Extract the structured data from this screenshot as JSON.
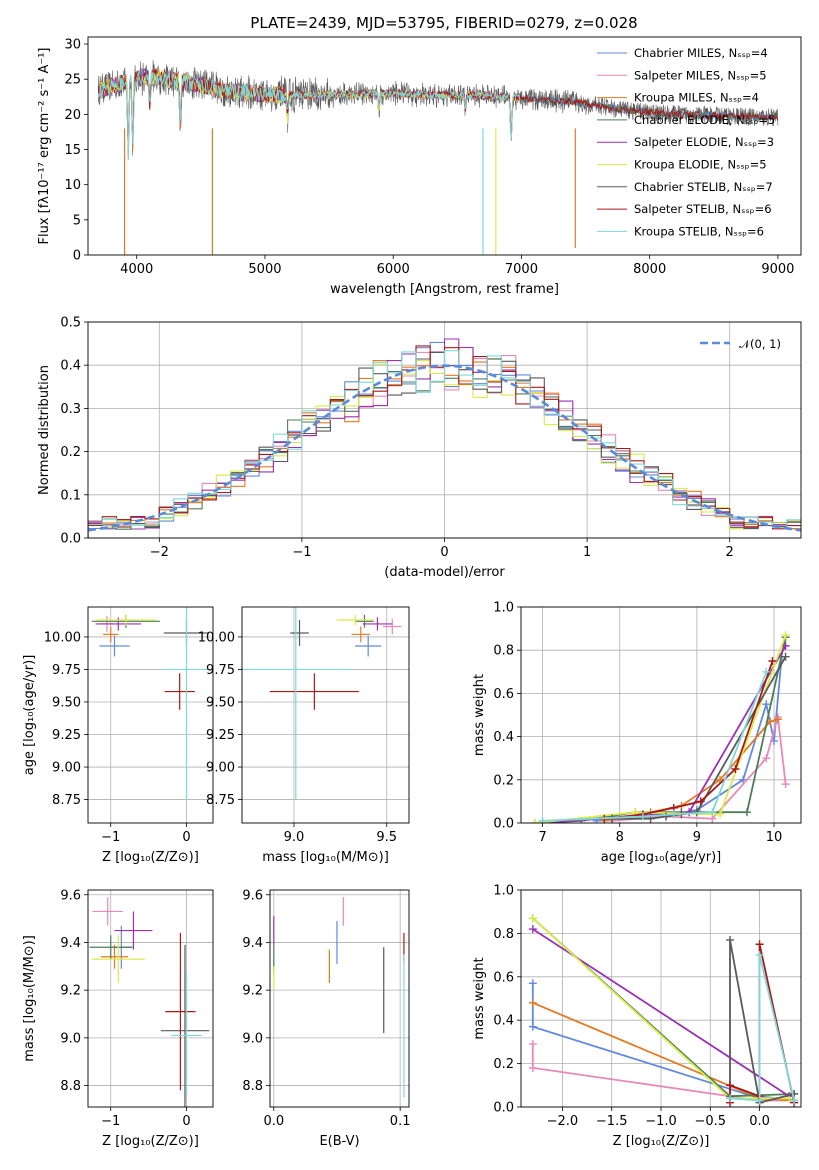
{
  "figure": {
    "title": "PLATE=2439, MJD=53795, FIBERID=0279, z=0.028"
  },
  "colors": {
    "Chabrier MILES": "#6389dd",
    "Salpeter MILES": "#e889b9",
    "Kroupa MILES": "#e57a23",
    "Chabrier ELODIE": "#4e7d5a",
    "Salpeter ELODIE": "#9b30b4",
    "Kroupa ELODIE": "#d9ec48",
    "Chabrier STELIB": "#5a5a5a",
    "Salpeter STELIB": "#a81a1a",
    "Kroupa STELIB": "#80d8d8",
    "normal": "#5b8ad8",
    "grid": "#b0b0b0"
  },
  "chart_data": [
    {
      "id": "spectrum",
      "type": "line",
      "xlabel": "wavelength [Angstrom, rest frame]",
      "ylabel": "Flux [fλ10⁻¹⁷ erg cm⁻² s⁻¹ A⁻¹]",
      "xlim": [
        3620,
        9180
      ],
      "ylim": [
        0,
        31
      ],
      "xticks": [
        4000,
        5000,
        6000,
        7000,
        8000,
        9000
      ],
      "yticks": [
        0,
        5,
        10,
        15,
        20,
        25,
        30
      ],
      "grid": false,
      "legend_position": "top-right",
      "series": [
        {
          "name": "Chabrier MILES, Nₛₛₚ=4"
        },
        {
          "name": "Salpeter MILES, Nₛₛₚ=5"
        },
        {
          "name": "Kroupa MILES, Nₛₛₚ=4"
        },
        {
          "name": "Chabrier ELODIE, Nₛₛₚ=5"
        },
        {
          "name": "Salpeter ELODIE, Nₛₛₚ=3"
        },
        {
          "name": "Kroupa ELODIE, Nₛₛₚ=5"
        },
        {
          "name": "Chabrier STELIB, Nₛₛₚ=7"
        },
        {
          "name": "Salpeter STELIB, Nₛₛₚ=6"
        },
        {
          "name": "Kroupa STELIB, Nₛₛₚ=6"
        }
      ],
      "continuum": {
        "wavelength": [
          3700,
          3900,
          4100,
          4400,
          4700,
          5000,
          5300,
          5600,
          6000,
          6300,
          6600,
          7000,
          7400,
          7800,
          8200,
          8600,
          9000
        ],
        "flux": [
          23.5,
          24.5,
          25.5,
          24.5,
          23.3,
          22.8,
          22.7,
          22.8,
          23.0,
          22.7,
          22.8,
          22.3,
          21.8,
          20.6,
          20.0,
          19.8,
          19.5
        ]
      },
      "absorption_lines": [
        {
          "wavelength": 3934,
          "depth": 10
        },
        {
          "wavelength": 3969,
          "depth": 9
        },
        {
          "wavelength": 4102,
          "depth": 4
        },
        {
          "wavelength": 4340,
          "depth": 6
        },
        {
          "wavelength": 5175,
          "depth": 3
        },
        {
          "wavelength": 5890,
          "depth": 2
        },
        {
          "wavelength": 6563,
          "depth": 2
        },
        {
          "wavelength": 6920,
          "depth": 6
        }
      ],
      "spikes": [
        {
          "wavelength": 3905,
          "flux_low": 0,
          "series_index": 2
        },
        {
          "wavelength": 4590,
          "flux_low": 0,
          "series_index": 2
        },
        {
          "wavelength": 6800,
          "flux_low": 0,
          "series_index": 5
        },
        {
          "wavelength": 7420,
          "flux_low": 1,
          "series_index": 2
        },
        {
          "wavelength": 6700,
          "flux_low": 0,
          "series_index": 8
        }
      ]
    },
    {
      "id": "residual_hist",
      "type": "bar",
      "xlabel": "(data-model)/error",
      "ylabel": "Normed distribution",
      "xlim": [
        -2.5,
        2.5
      ],
      "ylim": [
        0,
        0.5
      ],
      "xticks": [
        -2,
        -1,
        0,
        1,
        2
      ],
      "yticks": [
        0,
        0.1,
        0.2,
        0.3,
        0.4,
        0.5
      ],
      "grid": true,
      "legend_position": "top-right",
      "legend": [
        {
          "name": "𝒩(0, 1)"
        }
      ],
      "bin_width": 0.1,
      "bins_from": -2.5
    },
    {
      "id": "age_vs_Z",
      "type": "scatter",
      "xlabel": "Z [log₁₀(Z/Z⊙)]",
      "ylabel": "age  [log₁₀(age/yr)]",
      "xlim": [
        -1.3,
        0.35
      ],
      "ylim": [
        8.57,
        10.23
      ],
      "xticks": [
        -1,
        0
      ],
      "yticks": [
        8.75,
        9.0,
        9.25,
        9.5,
        9.75,
        10.0
      ],
      "grid": true,
      "points": [
        {
          "x": -0.95,
          "y": 9.93,
          "xerr": 0.2,
          "yerr": 0.08,
          "series": "Chabrier MILES"
        },
        {
          "x": -1.05,
          "y": 10.1,
          "xerr": 0.1,
          "yerr": 0.06,
          "series": "Salpeter MILES"
        },
        {
          "x": -1.0,
          "y": 10.02,
          "xerr": 0.1,
          "yerr": 0.06,
          "series": "Kroupa MILES"
        },
        {
          "x": -0.8,
          "y": 10.12,
          "xerr": 0.45,
          "yerr": 0.05,
          "series": "Chabrier ELODIE"
        },
        {
          "x": -0.9,
          "y": 10.1,
          "xerr": 0.3,
          "yerr": 0.05,
          "series": "Salpeter ELODIE"
        },
        {
          "x": -0.8,
          "y": 10.13,
          "xerr": 0.4,
          "yerr": 0.04,
          "series": "Kroupa ELODIE"
        },
        {
          "x": 0.0,
          "y": 10.03,
          "xerr": 0.3,
          "yerr": 0.1,
          "series": "Chabrier STELIB"
        },
        {
          "x": -0.09,
          "y": 9.58,
          "xerr": 0.2,
          "yerr": 0.14,
          "series": "Salpeter STELIB"
        },
        {
          "x": 0.0,
          "y": 9.75,
          "xerr": 0.3,
          "yerr": 1.0,
          "series": "Kroupa STELIB"
        }
      ]
    },
    {
      "id": "age_vs_mass",
      "type": "scatter",
      "xlabel": "mass [log₁₀(M/M⊙)]",
      "ylabel": "",
      "xlim": [
        8.72,
        9.62
      ],
      "ylim": [
        8.57,
        10.23
      ],
      "xticks": [
        9.0,
        9.5
      ],
      "yticks": [
        8.75,
        9.0,
        9.25,
        9.5,
        9.75,
        10.0
      ],
      "grid": true,
      "points": [
        {
          "x": 9.4,
          "y": 9.93,
          "xerr": 0.07,
          "yerr": 0.08,
          "series": "Chabrier MILES"
        },
        {
          "x": 9.53,
          "y": 10.08,
          "xerr": 0.05,
          "yerr": 0.06,
          "series": "Salpeter MILES"
        },
        {
          "x": 9.36,
          "y": 10.02,
          "xerr": 0.05,
          "yerr": 0.06,
          "series": "Kroupa MILES"
        },
        {
          "x": 9.38,
          "y": 10.12,
          "xerr": 0.05,
          "yerr": 0.05,
          "series": "Chabrier ELODIE"
        },
        {
          "x": 9.45,
          "y": 10.1,
          "xerr": 0.08,
          "yerr": 0.05,
          "series": "Salpeter ELODIE"
        },
        {
          "x": 9.33,
          "y": 10.13,
          "xerr": 0.1,
          "yerr": 0.04,
          "series": "Kroupa ELODIE"
        },
        {
          "x": 9.03,
          "y": 10.03,
          "xerr": 0.05,
          "yerr": 0.1,
          "series": "Chabrier STELIB"
        },
        {
          "x": 9.11,
          "y": 9.58,
          "xerr": 0.24,
          "yerr": 0.14,
          "series": "Salpeter STELIB"
        },
        {
          "x": 9.01,
          "y": 9.75,
          "xerr": 0.3,
          "yerr": 1.0,
          "series": "Kroupa STELIB"
        }
      ]
    },
    {
      "id": "massweight_vs_age",
      "type": "line",
      "xlabel": "age  [log₁₀(age/yr)]",
      "ylabel": "mass weight",
      "xlim": [
        6.72,
        10.35
      ],
      "ylim": [
        0,
        1
      ],
      "xticks": [
        7,
        8,
        9,
        10
      ],
      "yticks": [
        0,
        0.2,
        0.4,
        0.6,
        0.8,
        1.0
      ],
      "grid": true,
      "series": [
        {
          "series": "Chabrier MILES",
          "x": [
            7.7,
            8.3,
            8.7,
            9.0,
            9.6,
            9.9,
            10.0,
            10.1
          ],
          "y": [
            0.01,
            0.03,
            0.04,
            0.06,
            0.2,
            0.55,
            0.38,
            0.77
          ]
        },
        {
          "series": "Salpeter MILES",
          "x": [
            7.9,
            8.6,
            9.2,
            9.9,
            10.05,
            10.15
          ],
          "y": [
            0.01,
            0.03,
            0.02,
            0.3,
            0.49,
            0.18
          ]
        },
        {
          "series": "Kroupa MILES",
          "x": [
            7.8,
            8.4,
            8.8,
            9.3,
            9.95,
            10.05
          ],
          "y": [
            0.01,
            0.05,
            0.08,
            0.2,
            0.47,
            0.48
          ]
        },
        {
          "series": "Chabrier ELODIE",
          "x": [
            6.9,
            7.5,
            8.2,
            8.8,
            9.65,
            10.15
          ],
          "y": [
            0.0,
            0.01,
            0.05,
            0.05,
            0.05,
            0.86
          ]
        },
        {
          "series": "Salpeter ELODIE",
          "x": [
            7.0,
            8.9,
            10.15
          ],
          "y": [
            0.0,
            0.05,
            0.82
          ]
        },
        {
          "series": "Kroupa ELODIE",
          "x": [
            6.9,
            8.2,
            9.3,
            10.15
          ],
          "y": [
            0.0,
            0.05,
            0.04,
            0.87
          ]
        },
        {
          "series": "Chabrier STELIB",
          "x": [
            7.9,
            8.4,
            8.6,
            8.8,
            9.0,
            10.15
          ],
          "y": [
            0.02,
            0.02,
            0.03,
            0.04,
            0.05,
            0.77
          ]
        },
        {
          "series": "Salpeter STELIB",
          "x": [
            7.8,
            8.3,
            8.7,
            9.05,
            9.5,
            9.98
          ],
          "y": [
            0.02,
            0.04,
            0.07,
            0.1,
            0.25,
            0.75
          ]
        },
        {
          "series": "Kroupa STELIB",
          "x": [
            7.0,
            8.3,
            8.7,
            9.2,
            9.9
          ],
          "y": [
            0.01,
            0.03,
            0.04,
            0.05,
            0.7
          ]
        }
      ]
    },
    {
      "id": "mass_vs_Z",
      "type": "scatter",
      "xlabel": "Z [log₁₀(Z/Z⊙)]",
      "ylabel": "mass [log₁₀(M/M⊙)]",
      "xlim": [
        -1.3,
        0.35
      ],
      "ylim": [
        8.71,
        9.62
      ],
      "xticks": [
        -1,
        0
      ],
      "yticks": [
        8.8,
        9.0,
        9.2,
        9.4,
        9.6
      ],
      "grid": true,
      "points": [
        {
          "x": -0.86,
          "y": 9.38,
          "xerr": 0.15,
          "yerr": 0.09,
          "series": "Chabrier MILES"
        },
        {
          "x": -1.04,
          "y": 9.53,
          "xerr": 0.2,
          "yerr": 0.06,
          "series": "Salpeter MILES"
        },
        {
          "x": -0.95,
          "y": 9.34,
          "xerr": 0.18,
          "yerr": 0.05,
          "series": "Kroupa MILES"
        },
        {
          "x": -1.0,
          "y": 9.38,
          "xerr": 0.28,
          "yerr": 0.05,
          "series": "Chabrier ELODIE"
        },
        {
          "x": -0.7,
          "y": 9.45,
          "xerr": 0.25,
          "yerr": 0.08,
          "series": "Salpeter ELODIE"
        },
        {
          "x": -0.9,
          "y": 9.33,
          "xerr": 0.35,
          "yerr": 0.1,
          "series": "Kroupa ELODIE"
        },
        {
          "x": -0.02,
          "y": 9.03,
          "xerr": 0.32,
          "yerr": 0.36,
          "series": "Chabrier STELIB"
        },
        {
          "x": -0.08,
          "y": 9.11,
          "xerr": 0.2,
          "yerr": 0.33,
          "series": "Salpeter STELIB"
        },
        {
          "x": 0.0,
          "y": 9.01,
          "xerr": 0.2,
          "yerr": 0.26,
          "series": "Kroupa STELIB"
        }
      ]
    },
    {
      "id": "mass_vs_ebv",
      "type": "scatter",
      "xlabel": "E(B-V)",
      "ylabel": "",
      "xlim": [
        -0.003,
        0.107
      ],
      "ylim": [
        8.71,
        9.62
      ],
      "xticks": [
        0.0,
        0.1
      ],
      "yticks": [
        8.8,
        9.0,
        9.2,
        9.4,
        9.6
      ],
      "grid": true,
      "points": [
        {
          "x": 0.05,
          "y": 9.4,
          "yerr": 0.09,
          "series": "Chabrier MILES"
        },
        {
          "x": 0.055,
          "y": 9.53,
          "yerr": 0.06,
          "series": "Salpeter MILES"
        },
        {
          "x": 0.044,
          "y": 9.3,
          "yerr": 0.07,
          "series": "Kroupa MILES"
        },
        {
          "x": 0.0,
          "y": 9.33,
          "yerr": 0.06,
          "series": "Chabrier ELODIE"
        },
        {
          "x": 0.0,
          "y": 9.45,
          "yerr": 0.06,
          "series": "Salpeter ELODIE"
        },
        {
          "x": 0.0,
          "y": 9.25,
          "yerr": 0.05,
          "series": "Kroupa ELODIE"
        },
        {
          "x": 0.087,
          "y": 9.2,
          "yerr": 0.18,
          "series": "Chabrier STELIB"
        },
        {
          "x": 0.103,
          "y": 9.38,
          "yerr": 0.06,
          "series": "Salpeter STELIB"
        },
        {
          "x": 0.103,
          "y": 9.05,
          "yerr": 0.3,
          "series": "Kroupa STELIB"
        }
      ]
    },
    {
      "id": "massweight_vs_Z",
      "type": "line",
      "xlabel": "Z [log₁₀(Z/Z⊙)]",
      "ylabel": "mass weight",
      "xlim": [
        -2.42,
        0.42
      ],
      "ylim": [
        0,
        1
      ],
      "xticks": [
        -2.0,
        -1.5,
        -1.0,
        -0.5,
        0.0
      ],
      "yticks": [
        0,
        0.2,
        0.4,
        0.6,
        0.8,
        1.0
      ],
      "grid": true,
      "series": [
        {
          "series": "Chabrier MILES",
          "x": [
            -2.3,
            -2.3,
            0.0,
            0.0,
            0.35
          ],
          "y": [
            0.57,
            0.37,
            0.04,
            0.05,
            0.03
          ]
        },
        {
          "series": "Salpeter MILES",
          "x": [
            -2.3,
            -2.3,
            0.0,
            0.35
          ],
          "y": [
            0.29,
            0.18,
            0.03,
            0.03
          ]
        },
        {
          "series": "Kroupa MILES",
          "x": [
            -2.3,
            0.0,
            0.35
          ],
          "y": [
            0.48,
            0.04,
            0.03
          ]
        },
        {
          "series": "Chabrier ELODIE",
          "x": [
            -2.3,
            -0.3,
            0.35
          ],
          "y": [
            0.87,
            0.05,
            0.06
          ]
        },
        {
          "series": "Salpeter ELODIE",
          "x": [
            -2.3,
            0.3
          ],
          "y": [
            0.82,
            0.05
          ]
        },
        {
          "series": "Kroupa ELODIE",
          "x": [
            -2.3,
            -0.3,
            0.3
          ],
          "y": [
            0.87,
            0.04,
            0.04
          ]
        },
        {
          "series": "Chabrier STELIB",
          "x": [
            -0.3,
            -0.3,
            0.0,
            0.35
          ],
          "y": [
            0.05,
            0.77,
            0.02,
            0.06
          ]
        },
        {
          "series": "Salpeter STELIB",
          "x": [
            -0.3,
            -0.3,
            0.0,
            0.0,
            0.35
          ],
          "y": [
            0.02,
            0.1,
            0.05,
            0.75,
            0.02
          ]
        },
        {
          "series": "Kroupa STELIB",
          "x": [
            -0.3,
            0.0,
            0.0,
            0.35
          ],
          "y": [
            0.04,
            0.03,
            0.7,
            0.03
          ]
        }
      ]
    }
  ]
}
